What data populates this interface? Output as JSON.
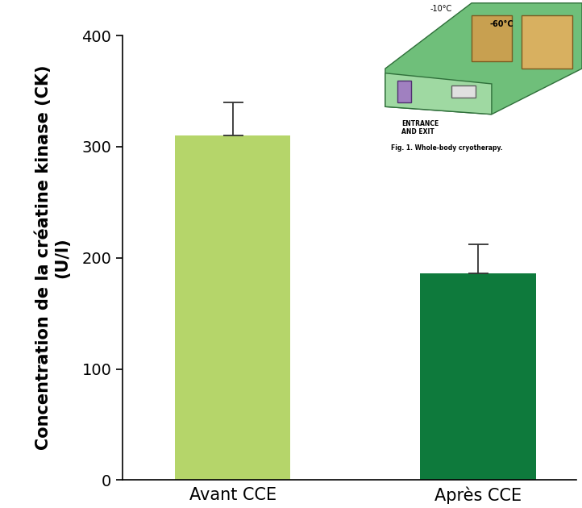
{
  "chart_data": {
    "type": "bar",
    "y_label": "Concentration de la créatine kinase (CK)\n(U/l)",
    "categories": [
      "Avant CCE",
      "Après CCE"
    ],
    "values": [
      310,
      186
    ],
    "errors": [
      30,
      26
    ],
    "colors": [
      "#b5d56a",
      "#0e7a3c"
    ],
    "ylim": [
      0,
      400
    ],
    "yticks": [
      0,
      100,
      200,
      300,
      400
    ],
    "grid": false,
    "annotations": [
      "-10°C",
      "-60°C",
      "ENTRANCE\nAND EXIT",
      "Fig. 1. Whole-body cryotherapy."
    ]
  }
}
